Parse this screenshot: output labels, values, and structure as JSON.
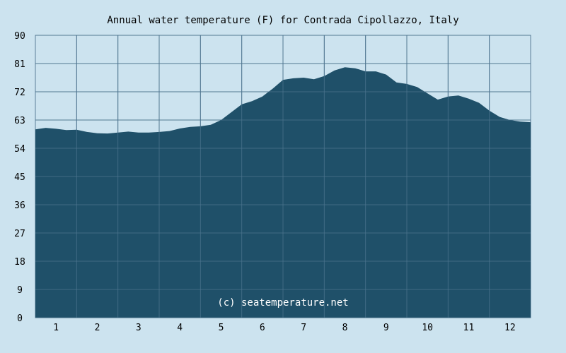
{
  "colors": {
    "background": "#cce3ef",
    "area": "#1f5069",
    "grid": "#5b7f99",
    "text": "#000000",
    "watermark": "#ffffff"
  },
  "chart_data": {
    "type": "area",
    "title": "Annual water temperature (F) for Contrada Cipollazzo, Italy",
    "xlabel": "",
    "ylabel": "",
    "ylim": [
      0,
      90
    ],
    "xlim": [
      0.5,
      12.5
    ],
    "y_ticks": [
      "0",
      "9",
      "18",
      "27",
      "36",
      "45",
      "54",
      "63",
      "72",
      "81",
      "90"
    ],
    "x_ticks": [
      "1",
      "2",
      "3",
      "4",
      "5",
      "6",
      "7",
      "8",
      "9",
      "10",
      "11",
      "12"
    ],
    "grid": true,
    "watermark": "(c) seatemperature.net",
    "series": [
      {
        "x": [
          0.5,
          0.75,
          1.0,
          1.25,
          1.5,
          1.75,
          2.0,
          2.25,
          2.5,
          2.75,
          3.0,
          3.25,
          3.5,
          3.75,
          4.0,
          4.25,
          4.5,
          4.75,
          5.0,
          5.25,
          5.5,
          5.75,
          6.0,
          6.25,
          6.5,
          6.75,
          7.0,
          7.25,
          7.5,
          7.75,
          8.0,
          8.25,
          8.5,
          8.75,
          9.0,
          9.25,
          9.5,
          9.75,
          10.0,
          10.25,
          10.5,
          10.75,
          11.0,
          11.25,
          11.5,
          11.75,
          12.0,
          12.25,
          12.5
        ],
        "values": [
          60.0,
          60.5,
          60.2,
          59.8,
          59.9,
          59.2,
          58.8,
          58.7,
          59.0,
          59.3,
          59.0,
          59.0,
          59.2,
          59.5,
          60.3,
          60.8,
          61.0,
          61.5,
          63.0,
          65.5,
          68.0,
          69.0,
          70.5,
          73.0,
          75.8,
          76.3,
          76.5,
          76.0,
          77.0,
          78.8,
          79.8,
          79.5,
          78.5,
          78.5,
          77.5,
          75.0,
          74.5,
          73.5,
          71.5,
          69.5,
          70.5,
          70.8,
          69.8,
          68.5,
          66.0,
          64.0,
          63.0,
          62.5,
          62.3
        ]
      }
    ]
  }
}
